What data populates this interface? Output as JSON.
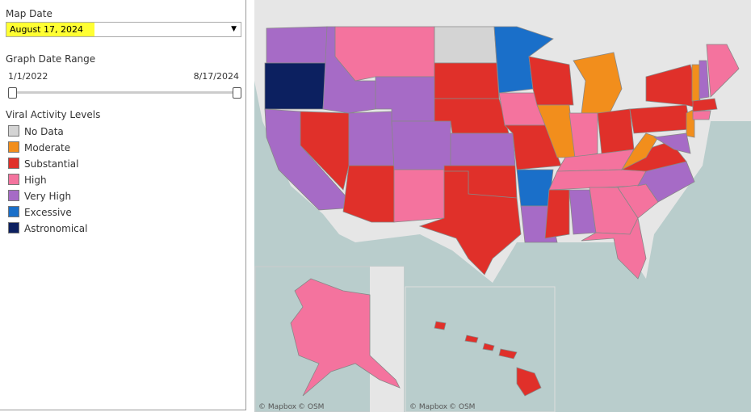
{
  "filters": {
    "map_date": {
      "label": "Map Date",
      "value": "August 17, 2024"
    },
    "date_range": {
      "label": "Graph Date Range",
      "start": "1/1/2022",
      "end": "8/17/2024"
    }
  },
  "legend": {
    "title": "Viral Activity Levels",
    "items": [
      {
        "label": "No Data",
        "color": "#d4d4d4"
      },
      {
        "label": "Moderate",
        "color": "#f28e1c"
      },
      {
        "label": "Substantial",
        "color": "#e0302a"
      },
      {
        "label": "High",
        "color": "#f4739e"
      },
      {
        "label": "Very High",
        "color": "#a66bc6"
      },
      {
        "label": "Excessive",
        "color": "#1a6fc9"
      },
      {
        "label": "Astronomical",
        "color": "#0c2060"
      }
    ]
  },
  "attribution": {
    "mapbox": "© Mapbox",
    "osm": "© OSM"
  }
}
